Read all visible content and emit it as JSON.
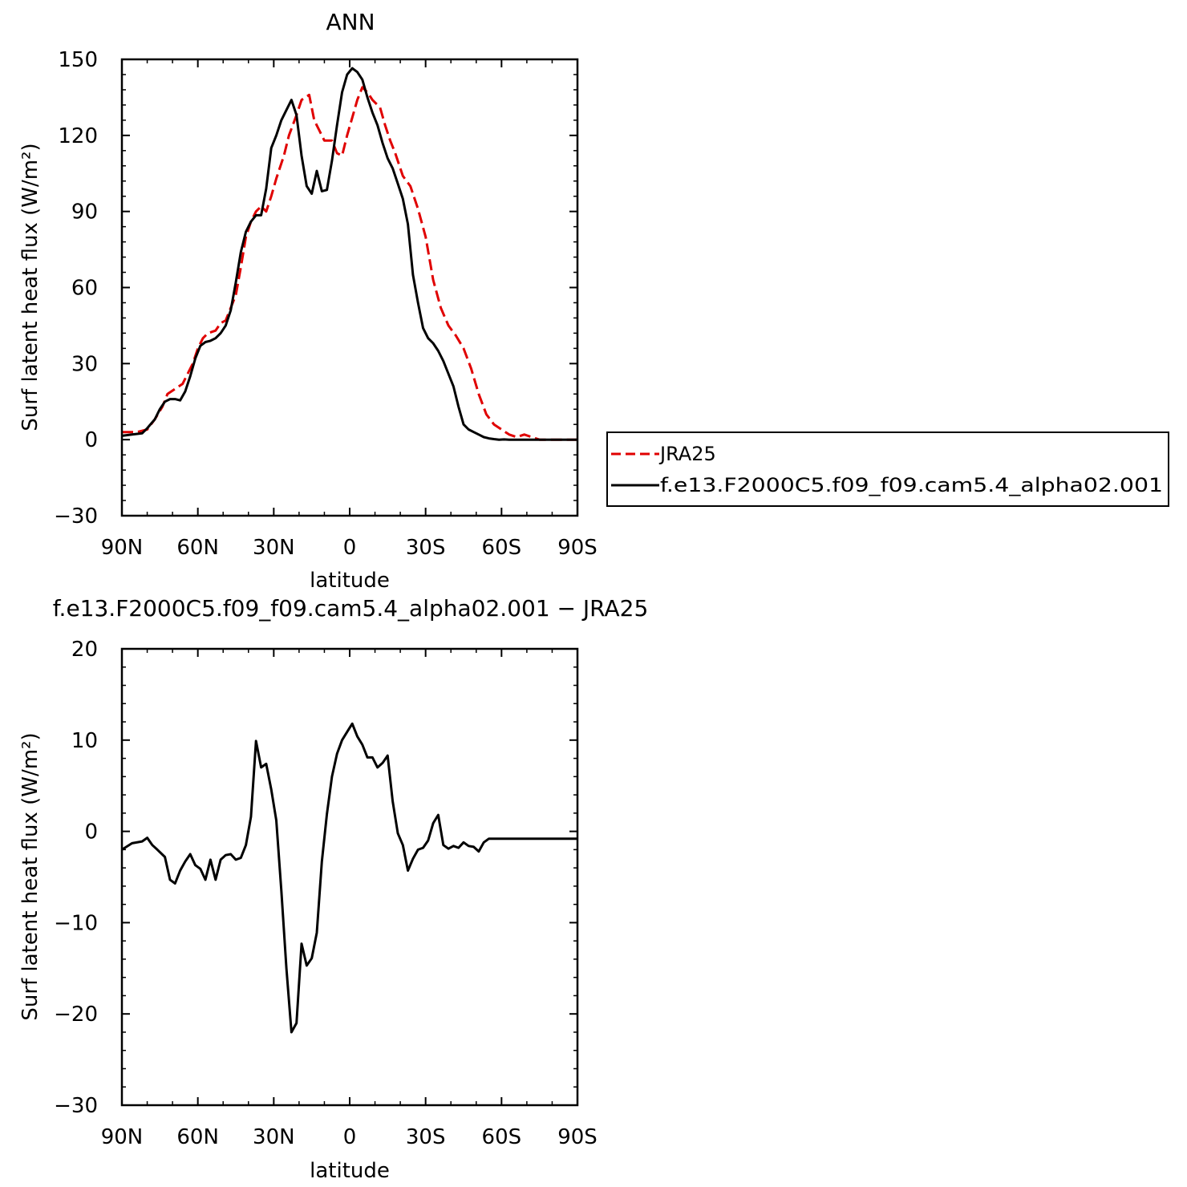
{
  "chart_data": [
    {
      "type": "line",
      "title": "ANN",
      "xlabel": "latitude",
      "ylabel": "Surf latent heat flux (W/m²)",
      "xlim": [
        90,
        -90
      ],
      "ylim": [
        -30,
        150
      ],
      "xticks": [
        90,
        60,
        30,
        0,
        -30,
        -60,
        -90
      ],
      "xtick_labels": [
        "90N",
        "60N",
        "30N",
        "0",
        "30S",
        "60S",
        "90S"
      ],
      "yticks": [
        -30,
        0,
        30,
        60,
        90,
        120,
        150
      ],
      "ytick_labels": [
        "−30",
        "0",
        "30",
        "60",
        "90",
        "120",
        "150"
      ],
      "grid": false,
      "legend": "right",
      "series": [
        {
          "name": "JRA25",
          "color": "#e00000",
          "dash": "dashed",
          "x": [
            90,
            84,
            80,
            77,
            74,
            72,
            69,
            66,
            64,
            62,
            60,
            58,
            56,
            53,
            51,
            49,
            47,
            45,
            43,
            41,
            39,
            37,
            35,
            33,
            31,
            29,
            26,
            24,
            21,
            19,
            16,
            14,
            12,
            10,
            7,
            5,
            3,
            1,
            -1,
            -3,
            -5,
            -7,
            -9,
            -12,
            -14,
            -16,
            -18,
            -21,
            -24,
            -27,
            -30,
            -33,
            -36,
            -39,
            -42,
            -45,
            -48,
            -51,
            -54,
            -57,
            -60,
            -63,
            -66,
            -69,
            -72,
            -75,
            -78,
            -81,
            -84,
            -87,
            -90
          ],
          "values": [
            3,
            3,
            4,
            8,
            13,
            18,
            20,
            22,
            26,
            30,
            36,
            40,
            42,
            43,
            46,
            47,
            52,
            57,
            68,
            80,
            86,
            90,
            92,
            90,
            96,
            103,
            112,
            120,
            128,
            134,
            136,
            126,
            122,
            118,
            118,
            113,
            112,
            120,
            127,
            134,
            139,
            137,
            134,
            131,
            124,
            118,
            113,
            104,
            100,
            91,
            80,
            63,
            52,
            45,
            41,
            36,
            28,
            18,
            10,
            6,
            4,
            2,
            1,
            2,
            1,
            0,
            0,
            0,
            0,
            0,
            0
          ],
          "note_values": "read from graph"
        },
        {
          "name": "f.e13.F2000C5.f09_f09.cam5.4_alpha02.001",
          "color": "#000000",
          "dash": "solid",
          "x": [
            90,
            86,
            82,
            80,
            77,
            75,
            73,
            71,
            69,
            67,
            65,
            63,
            61,
            59,
            57,
            55,
            53,
            51,
            49,
            47,
            45,
            43,
            41,
            39,
            37,
            35,
            33,
            31,
            29,
            27,
            25,
            23,
            21,
            19,
            17,
            15,
            13,
            11,
            9,
            7,
            5,
            3,
            1,
            -1,
            -3,
            -5,
            -7,
            -9,
            -11,
            -13,
            -15,
            -17,
            -19,
            -21,
            -23,
            -25,
            -27,
            -29,
            -31,
            -33,
            -35,
            -37,
            -39,
            -41,
            -43,
            -45,
            -47,
            -49,
            -51,
            -53,
            -55,
            -57,
            -59,
            -61,
            -63,
            -65,
            -67,
            -69,
            -71,
            -73,
            -75,
            -77,
            -79,
            -81,
            -83,
            -85,
            -87,
            -89,
            -90
          ],
          "values": [
            1.5,
            2,
            2.5,
            4.5,
            8,
            12,
            15,
            16,
            16,
            15.5,
            19,
            25,
            32,
            37,
            38.5,
            39,
            40,
            42,
            45,
            51,
            62,
            74,
            82,
            86,
            88.5,
            88.5,
            99,
            115,
            120,
            126,
            130,
            134,
            128,
            112,
            100,
            97,
            106,
            98,
            98.5,
            110,
            124,
            137,
            144,
            146.5,
            145,
            142,
            135,
            129,
            124,
            117,
            111,
            107,
            101,
            95,
            85,
            65,
            54,
            44,
            40,
            38,
            35,
            31,
            26,
            21,
            13,
            6,
            4,
            3,
            2,
            1,
            0.5,
            0.2,
            0,
            0.1,
            0,
            0,
            0,
            0,
            0,
            0,
            0,
            0,
            0,
            0,
            0,
            0,
            0,
            0,
            0
          ],
          "note_values": "read from graph"
        }
      ]
    },
    {
      "type": "line",
      "title": "f.e13.F2000C5.f09_f09.cam5.4_alpha02.001 − JRA25",
      "xlabel": "latitude",
      "ylabel": "Surf latent heat flux (W/m²)",
      "xlim": [
        90,
        -90
      ],
      "ylim": [
        -30,
        20
      ],
      "xticks": [
        90,
        60,
        30,
        0,
        -30,
        -60,
        -90
      ],
      "xtick_labels": [
        "90N",
        "60N",
        "30N",
        "0",
        "30S",
        "60S",
        "90S"
      ],
      "yticks": [
        -30,
        -20,
        -10,
        0,
        10,
        20
      ],
      "ytick_labels": [
        "−30",
        "−20",
        "−10",
        "0",
        "10",
        "20"
      ],
      "grid": false,
      "series": [
        {
          "color": "#000000",
          "dash": "solid",
          "x": [
            90,
            86,
            82,
            80,
            78,
            76,
            73,
            71,
            69,
            67,
            65,
            63,
            61,
            59,
            57,
            55,
            53,
            51,
            49,
            47,
            45,
            43,
            41,
            39,
            37,
            35,
            33,
            31,
            29,
            27,
            25,
            23,
            21,
            19,
            17,
            15,
            13,
            11,
            9,
            7,
            5,
            3,
            1,
            -1,
            -3,
            -5,
            -7,
            -9,
            -11,
            -13,
            -15,
            -17,
            -19,
            -21,
            -23,
            -25,
            -27,
            -29,
            -31,
            -33,
            -35,
            -37,
            -39,
            -41,
            -43,
            -45,
            -47,
            -49,
            -51,
            -53,
            -55,
            -57,
            -59,
            -61,
            -63,
            -65,
            -67,
            -69,
            -71,
            -73,
            -75,
            -77,
            -79,
            -81,
            -83,
            -85,
            -87,
            -89,
            -90
          ],
          "values": [
            -2,
            -1.3,
            -1.1,
            -0.7,
            -1.5,
            -2,
            -2.8,
            -5.3,
            -5.7,
            -4.3,
            -3.3,
            -2.5,
            -3.7,
            -4.1,
            -5.3,
            -3.1,
            -5.3,
            -3.1,
            -2.6,
            -2.5,
            -3.1,
            -2.9,
            -1.5,
            1.6,
            9.9,
            7,
            7.4,
            4.6,
            1.2,
            -6.5,
            -15,
            -22,
            -21,
            -12.3,
            -14.7,
            -13.9,
            -11.1,
            -3.3,
            1.9,
            6,
            8.5,
            10,
            10.9,
            11.8,
            10.4,
            9.5,
            8.1,
            8.1,
            7,
            7.5,
            8.3,
            3.3,
            -0.2,
            -1.5,
            -4.3,
            -3,
            -2,
            -1.8,
            -1,
            0.9,
            1.8,
            -1.5,
            -1.9,
            -1.6,
            -1.8,
            -1.2,
            -1.6,
            -1.7,
            -2.2,
            -1.2,
            -0.8,
            -0.8,
            -0.8,
            -0.8,
            -0.8,
            -0.8,
            -0.8,
            -0.8,
            -0.8,
            -0.8,
            -0.8,
            -0.8,
            -0.8,
            -0.8,
            -0.8,
            -0.8,
            -0.8,
            -0.8,
            -0.8
          ],
          "note_values": "read from graph"
        }
      ]
    }
  ]
}
